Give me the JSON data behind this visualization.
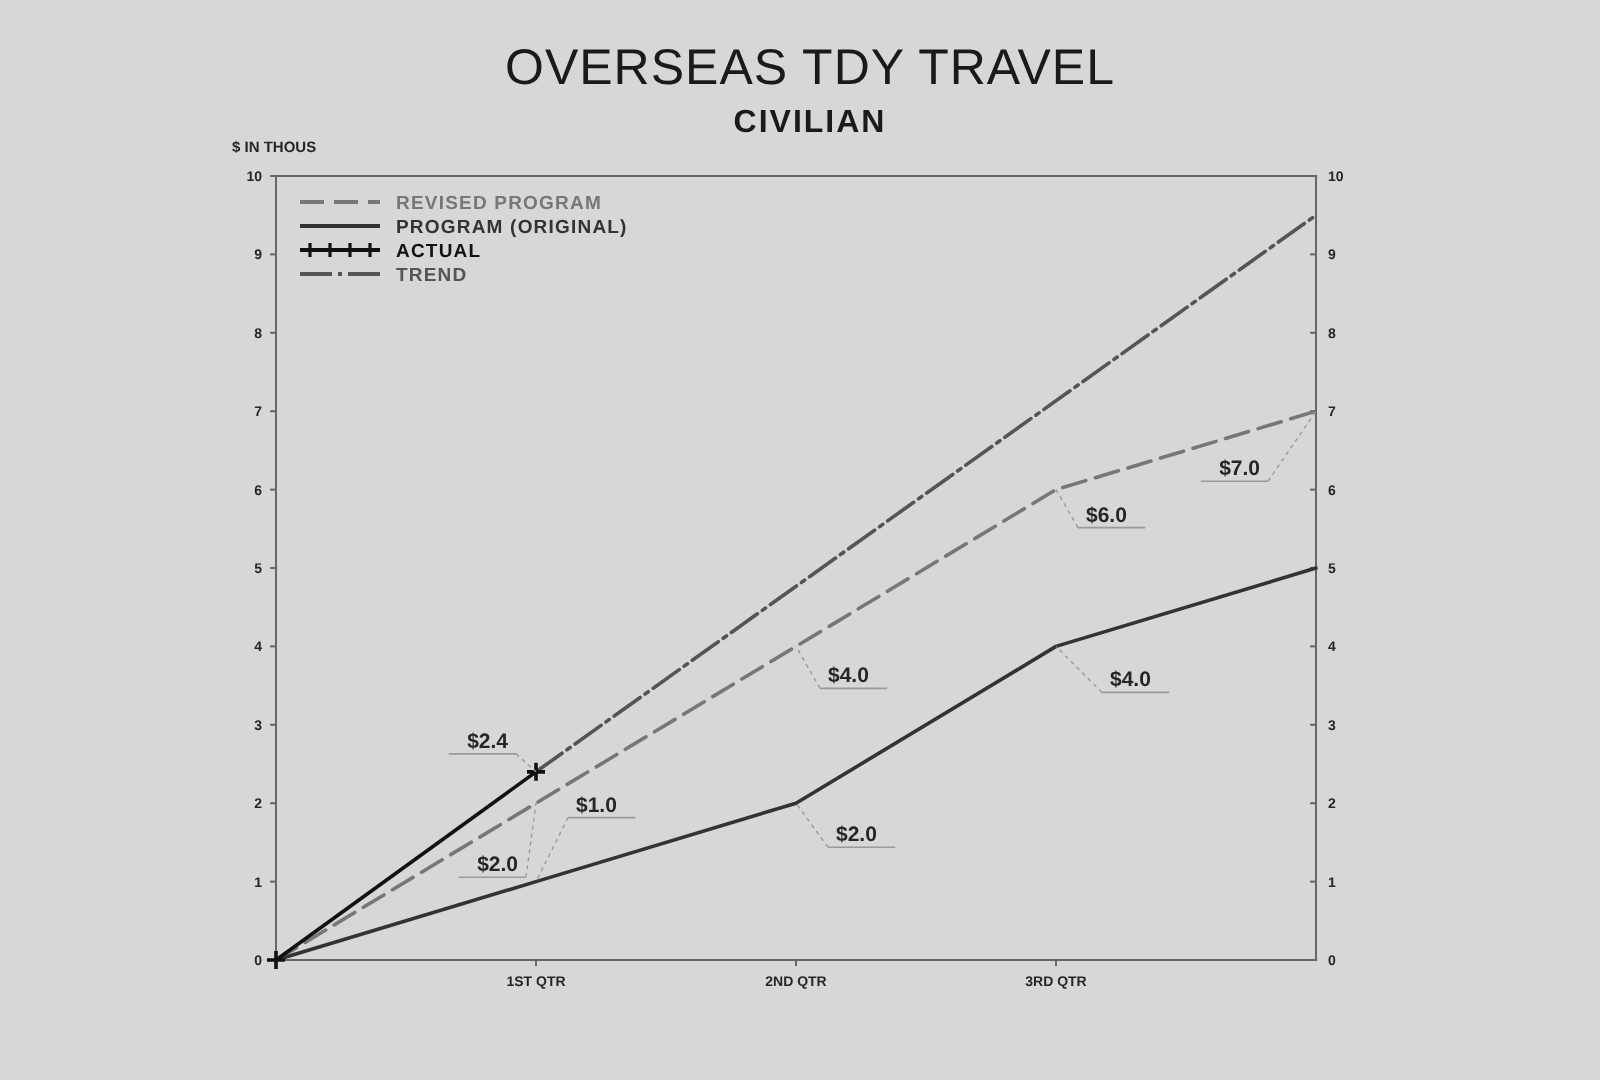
{
  "chart_data": {
    "type": "line",
    "title": "OVERSEAS TDY TRAVEL",
    "subtitle": "CIVILIAN",
    "ylabel": "$ IN THOUS",
    "x": [
      0,
      1,
      2,
      3,
      4
    ],
    "series": [
      {
        "name": "REVISED PROGRAM",
        "color": "#777777",
        "line_style": "dashed",
        "values": [
          0,
          2.0,
          4.0,
          6.0,
          7.0
        ],
        "value_labels": [
          null,
          "$2.0",
          "$4.0",
          "$6.0",
          "$7.0"
        ]
      },
      {
        "name": "PROGRAM (ORIGINAL)",
        "color": "#333333",
        "line_style": "solid",
        "values": [
          0,
          1.0,
          2.0,
          4.0,
          5.0
        ],
        "value_labels": [
          null,
          "$1.0",
          "$2.0",
          "$4.0",
          null
        ]
      },
      {
        "name": "ACTUAL",
        "color": "#111111",
        "line_style": "solid",
        "marker": "cross",
        "x": [
          0,
          1
        ],
        "values": [
          0,
          2.4
        ],
        "value_labels": [
          null,
          "$2.4"
        ]
      },
      {
        "name": "TREND",
        "color": "#555555",
        "line_style": "dashdot",
        "x": [
          1,
          4
        ],
        "values": [
          2.4,
          9.5
        ]
      }
    ],
    "xlim": [
      0,
      4
    ],
    "xticks": [
      {
        "value": 1,
        "label": "1ST QTR"
      },
      {
        "value": 2,
        "label": "2ND QTR"
      },
      {
        "value": 3,
        "label": "3RD QTR"
      }
    ],
    "ylim": [
      0,
      10
    ],
    "yticks": [
      0,
      1,
      2,
      3,
      4,
      5,
      6,
      7,
      8,
      9,
      10
    ],
    "y2lim": [
      0,
      10
    ],
    "y2ticks": [
      0,
      1,
      2,
      3,
      4,
      5,
      6,
      7,
      8,
      9,
      10
    ],
    "legend": "top left"
  }
}
